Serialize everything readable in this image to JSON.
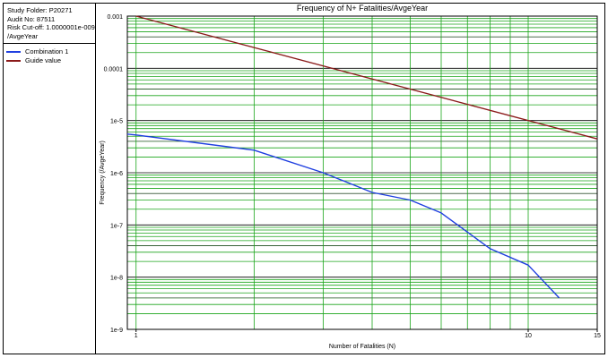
{
  "info": {
    "study_folder": "Study Folder: P20271",
    "audit_no": "Audit No: 87511",
    "risk_cutoff": "Risk Cut-off: 1.0000001e-009",
    "unit": "/AvgeYear"
  },
  "legend": [
    {
      "name": "Combination 1",
      "color": "#1f3fe0"
    },
    {
      "name": "Guide value",
      "color": "#8b1a1a"
    }
  ],
  "chart_data": {
    "type": "line",
    "title": "Frequency of N+ Fatalities/AvgeYear",
    "xlabel": "Number of Fatalities (N)",
    "ylabel": "Frequency (/AvgeYear)",
    "x_scale": "log",
    "y_scale": "log",
    "xlim": [
      0.95,
      15
    ],
    "ylim": [
      1e-09,
      0.001
    ],
    "x_tick_labels": [
      {
        "value": 1,
        "label": "1"
      },
      {
        "value": 10,
        "label": "10"
      },
      {
        "value": 15,
        "label": "15"
      }
    ],
    "y_tick_labels": [
      {
        "value": 0.001,
        "label": "0.001"
      },
      {
        "value": 0.0001,
        "label": "0.0001"
      },
      {
        "value": 1e-05,
        "label": "1e-5"
      },
      {
        "value": 1e-06,
        "label": "1e-6"
      },
      {
        "value": 1e-07,
        "label": "1e-7"
      },
      {
        "value": 1e-08,
        "label": "1e-8"
      },
      {
        "value": 1e-09,
        "label": "1e-9"
      }
    ],
    "grid": true,
    "series": [
      {
        "name": "Combination 1",
        "color": "#1f3fe0",
        "x": [
          0.95,
          1,
          2,
          3,
          4,
          5,
          6,
          8,
          10,
          12
        ],
        "y": [
          5.5e-06,
          5.3e-06,
          2.7e-06,
          1e-06,
          4.2e-07,
          3e-07,
          1.7e-07,
          3.5e-08,
          1.7e-08,
          4e-09
        ]
      },
      {
        "name": "Guide value",
        "color": "#8b1a1a",
        "x": [
          1,
          15
        ],
        "y": [
          0.001,
          4.44e-06
        ]
      }
    ]
  }
}
